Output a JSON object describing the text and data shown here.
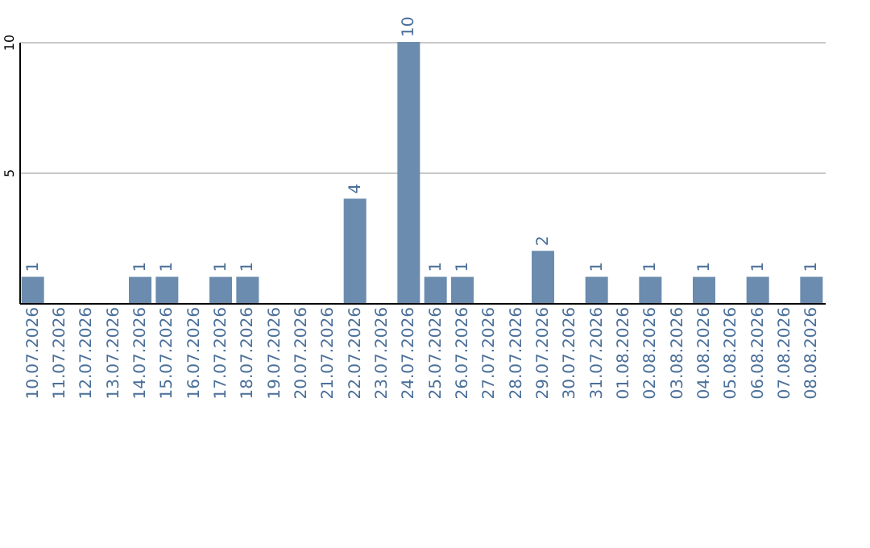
{
  "chart_data": {
    "type": "bar",
    "categories": [
      "10.07.2026",
      "11.07.2026",
      "12.07.2026",
      "13.07.2026",
      "14.07.2026",
      "15.07.2026",
      "16.07.2026",
      "17.07.2026",
      "18.07.2026",
      "19.07.2026",
      "20.07.2026",
      "21.07.2026",
      "22.07.2026",
      "23.07.2026",
      "24.07.2026",
      "25.07.2026",
      "26.07.2026",
      "27.07.2026",
      "28.07.2026",
      "29.07.2026",
      "30.07.2026",
      "31.07.2026",
      "01.08.2026",
      "02.08.2026",
      "03.08.2026",
      "04.08.2026",
      "05.08.2026",
      "06.08.2026",
      "07.08.2026",
      "08.08.2026"
    ],
    "values": [
      1,
      0,
      0,
      0,
      1,
      1,
      0,
      1,
      1,
      0,
      0,
      0,
      4,
      0,
      10,
      1,
      1,
      0,
      0,
      2,
      0,
      1,
      0,
      1,
      0,
      1,
      0,
      1,
      0,
      1
    ],
    "value_labels": [
      "1",
      null,
      null,
      null,
      "1",
      "1",
      null,
      "1",
      "1",
      null,
      null,
      null,
      "4",
      null,
      "10",
      "1",
      "1",
      null,
      null,
      "2",
      null,
      "1",
      null,
      "1",
      null,
      "1",
      null,
      "1",
      null,
      "1"
    ],
    "color": "#6b8cae",
    "ylim": [
      0,
      10
    ],
    "yticks": [
      5,
      10
    ],
    "grid": "y"
  }
}
